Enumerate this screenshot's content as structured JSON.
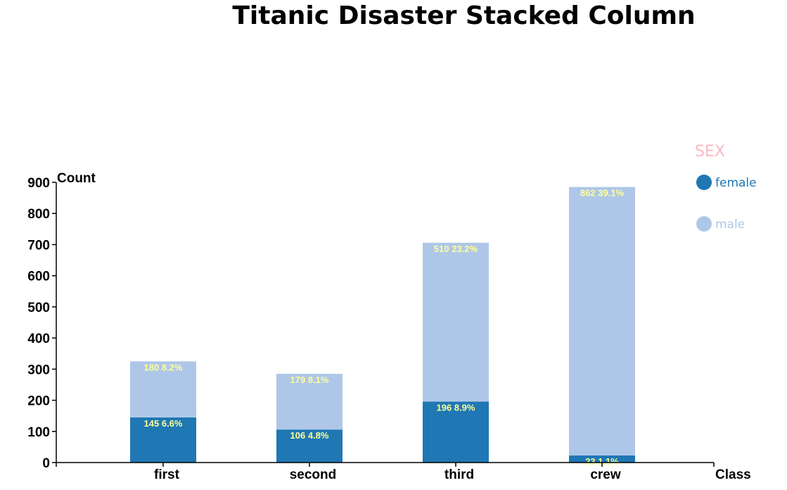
{
  "chart_data": {
    "type": "bar",
    "stacked": true,
    "title": "Titanic Disaster Stacked Column",
    "xlabel": "Class",
    "ylabel": "Count",
    "categories": [
      "first",
      "second",
      "third",
      "crew"
    ],
    "ylim": [
      0,
      900
    ],
    "yticks": [
      0,
      100,
      200,
      300,
      400,
      500,
      600,
      700,
      800,
      900
    ],
    "series": [
      {
        "name": "female",
        "color": "#1f77b4",
        "values": [
          145,
          106,
          196,
          23
        ],
        "labels": [
          "145 6.6%",
          "106 4.8%",
          "196 8.9%",
          "23 1.1%"
        ]
      },
      {
        "name": "male",
        "color": "#aec7e8",
        "values": [
          180,
          179,
          510,
          862
        ],
        "labels": [
          "180 8.2%",
          "179 8.1%",
          "510 23.2%",
          "862 39.1%"
        ]
      }
    ],
    "legend": {
      "title": "SEX",
      "title_color": "#ffb6c1",
      "position": "top-right"
    },
    "label_color": "#ffff99",
    "grid": false
  }
}
